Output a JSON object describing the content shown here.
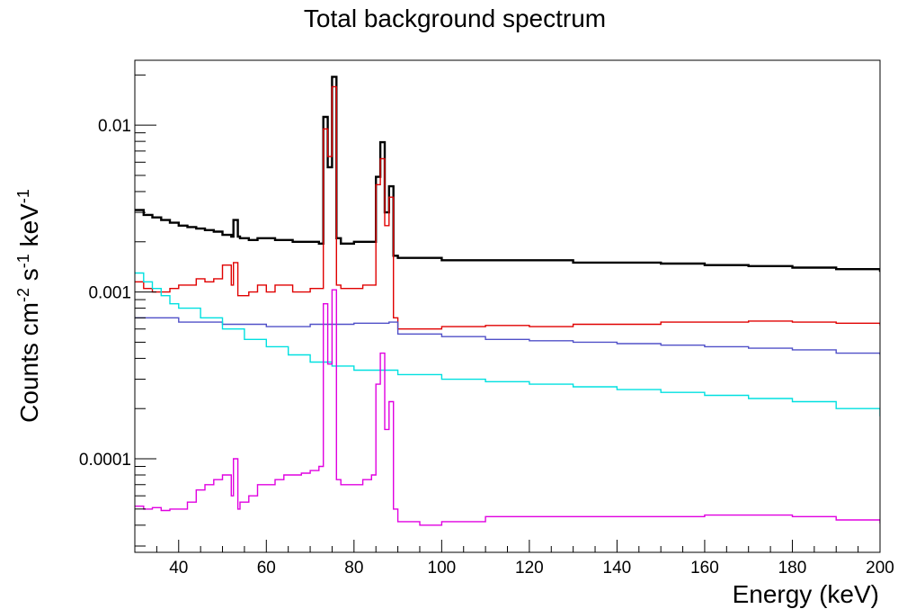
{
  "chart_data": {
    "type": "line",
    "step": true,
    "title": "Total background spectrum",
    "xlabel": "Energy (keV)",
    "ylabel_parts": {
      "base1": "Counts cm",
      "sup1": "-2",
      "base2": " s",
      "sup2": "-1",
      "base3": " keV",
      "sup3": "-1"
    },
    "xlim": [
      30,
      200
    ],
    "ylim": [
      2.75e-05,
      0.0245
    ],
    "yscale": "log",
    "grid": false,
    "legend": "none",
    "x_ticks": [
      40,
      60,
      80,
      100,
      120,
      140,
      160,
      180,
      200
    ],
    "x_tick_labels": [
      "40",
      "60",
      "80",
      "100",
      "120",
      "140",
      "160",
      "180",
      "200"
    ],
    "y_ticks": [
      0.0001,
      0.001,
      0.01
    ],
    "y_tick_labels": [
      "0.0001",
      "0.001",
      "0.01"
    ],
    "series": [
      {
        "color": "#000000",
        "x": [
          30,
          32,
          34,
          36,
          38,
          40,
          42,
          44,
          46,
          48,
          50,
          52,
          52.5,
          53.5,
          54,
          56,
          58,
          60,
          62,
          64,
          66,
          68,
          70,
          72,
          73,
          74,
          75,
          76,
          77,
          78,
          80,
          82,
          84,
          85,
          86,
          87,
          88,
          89,
          90,
          95,
          100,
          110,
          120,
          130,
          140,
          150,
          160,
          170,
          180,
          190,
          200
        ],
        "y": [
          0.0031,
          0.0029,
          0.0028,
          0.0027,
          0.0026,
          0.0025,
          0.00245,
          0.0024,
          0.00235,
          0.0023,
          0.0022,
          0.00215,
          0.0027,
          0.00215,
          0.0021,
          0.00205,
          0.0021,
          0.0021,
          0.00205,
          0.00205,
          0.002,
          0.002,
          0.002,
          0.00195,
          0.0112,
          0.0056,
          0.0195,
          0.0021,
          0.00195,
          0.00195,
          0.002,
          0.002,
          0.002,
          0.0049,
          0.0079,
          0.003,
          0.0043,
          0.00165,
          0.0016,
          0.0016,
          0.00155,
          0.00155,
          0.00155,
          0.0015,
          0.0015,
          0.00148,
          0.00145,
          0.00143,
          0.0014,
          0.00137,
          0.00132
        ]
      },
      {
        "color": "#e00000",
        "x": [
          30,
          32,
          34,
          36,
          38,
          40,
          42,
          44,
          46,
          48,
          50,
          52,
          52.5,
          53.5,
          54,
          56,
          58,
          60,
          62,
          64,
          66,
          68,
          70,
          72,
          73,
          74,
          75,
          76,
          77,
          78,
          80,
          82,
          84,
          85,
          86,
          87,
          88,
          89,
          90,
          95,
          100,
          110,
          120,
          130,
          140,
          150,
          160,
          170,
          180,
          190,
          200
        ],
        "y": [
          0.00115,
          0.00105,
          0.001,
          0.001,
          0.00105,
          0.0011,
          0.0011,
          0.0012,
          0.00115,
          0.0012,
          0.00145,
          0.0011,
          0.0015,
          0.00095,
          0.00095,
          0.001,
          0.0011,
          0.001,
          0.0011,
          0.0011,
          0.001,
          0.001,
          0.00105,
          0.00105,
          0.0095,
          0.0065,
          0.017,
          0.0011,
          0.00105,
          0.00105,
          0.00105,
          0.0011,
          0.0011,
          0.0044,
          0.0063,
          0.0025,
          0.0037,
          0.0007,
          0.0006,
          0.0006,
          0.00062,
          0.00063,
          0.00062,
          0.00064,
          0.00064,
          0.00066,
          0.00066,
          0.00067,
          0.00066,
          0.00065,
          0.00063
        ]
      },
      {
        "color": "#5050c8",
        "x": [
          30,
          40,
          50,
          60,
          70,
          80,
          85,
          88,
          90,
          100,
          110,
          120,
          130,
          140,
          150,
          160,
          170,
          180,
          190,
          200
        ],
        "y": [
          0.0007,
          0.00066,
          0.00064,
          0.00062,
          0.00064,
          0.00065,
          0.00065,
          0.00066,
          0.00056,
          0.00054,
          0.00052,
          0.00051,
          0.0005,
          0.00049,
          0.00048,
          0.00047,
          0.00046,
          0.00045,
          0.00043,
          0.00042
        ]
      },
      {
        "color": "#00e0e0",
        "x": [
          30,
          32,
          34,
          36,
          38,
          40,
          45,
          50,
          55,
          60,
          65,
          70,
          75,
          80,
          90,
          100,
          110,
          120,
          130,
          140,
          150,
          160,
          170,
          180,
          190,
          200
        ],
        "y": [
          0.0013,
          0.00115,
          0.00105,
          0.00095,
          0.00085,
          0.0008,
          0.0007,
          0.0006,
          0.00052,
          0.00047,
          0.00042,
          0.00038,
          0.00036,
          0.00034,
          0.00032,
          0.0003,
          0.00029,
          0.00028,
          0.00027,
          0.00026,
          0.00025,
          0.00024,
          0.00023,
          0.00022,
          0.0002,
          0.00018
        ]
      },
      {
        "color": "#e000e0",
        "x": [
          30,
          32,
          34,
          36,
          38,
          40,
          42,
          44,
          46,
          48,
          50,
          52,
          52.5,
          53.5,
          54,
          56,
          58,
          60,
          62,
          64,
          66,
          68,
          70,
          72,
          73,
          74,
          75,
          76,
          77,
          78,
          80,
          82,
          84,
          85,
          86,
          87,
          88,
          89,
          90,
          95,
          100,
          110,
          120,
          130,
          140,
          150,
          160,
          170,
          180,
          190,
          200
        ],
        "y": [
          5.2e-05,
          5e-05,
          5.1e-05,
          4.9e-05,
          5e-05,
          5e-05,
          5.5e-05,
          6.5e-05,
          7e-05,
          7.5e-05,
          8e-05,
          6e-05,
          0.0001,
          5e-05,
          5.5e-05,
          6e-05,
          7e-05,
          7e-05,
          7.5e-05,
          8e-05,
          8e-05,
          8.2e-05,
          8.5e-05,
          9e-05,
          0.00085,
          0.00037,
          0.00103,
          7.5e-05,
          7e-05,
          7e-05,
          7e-05,
          7.5e-05,
          8e-05,
          0.00028,
          0.00043,
          0.00015,
          0.00022,
          5e-05,
          4.2e-05,
          4e-05,
          4.2e-05,
          4.5e-05,
          4.5e-05,
          4.5e-05,
          4.5e-05,
          4.5e-05,
          4.6e-05,
          4.6e-05,
          4.5e-05,
          4.3e-05,
          4.1e-05
        ]
      }
    ]
  }
}
